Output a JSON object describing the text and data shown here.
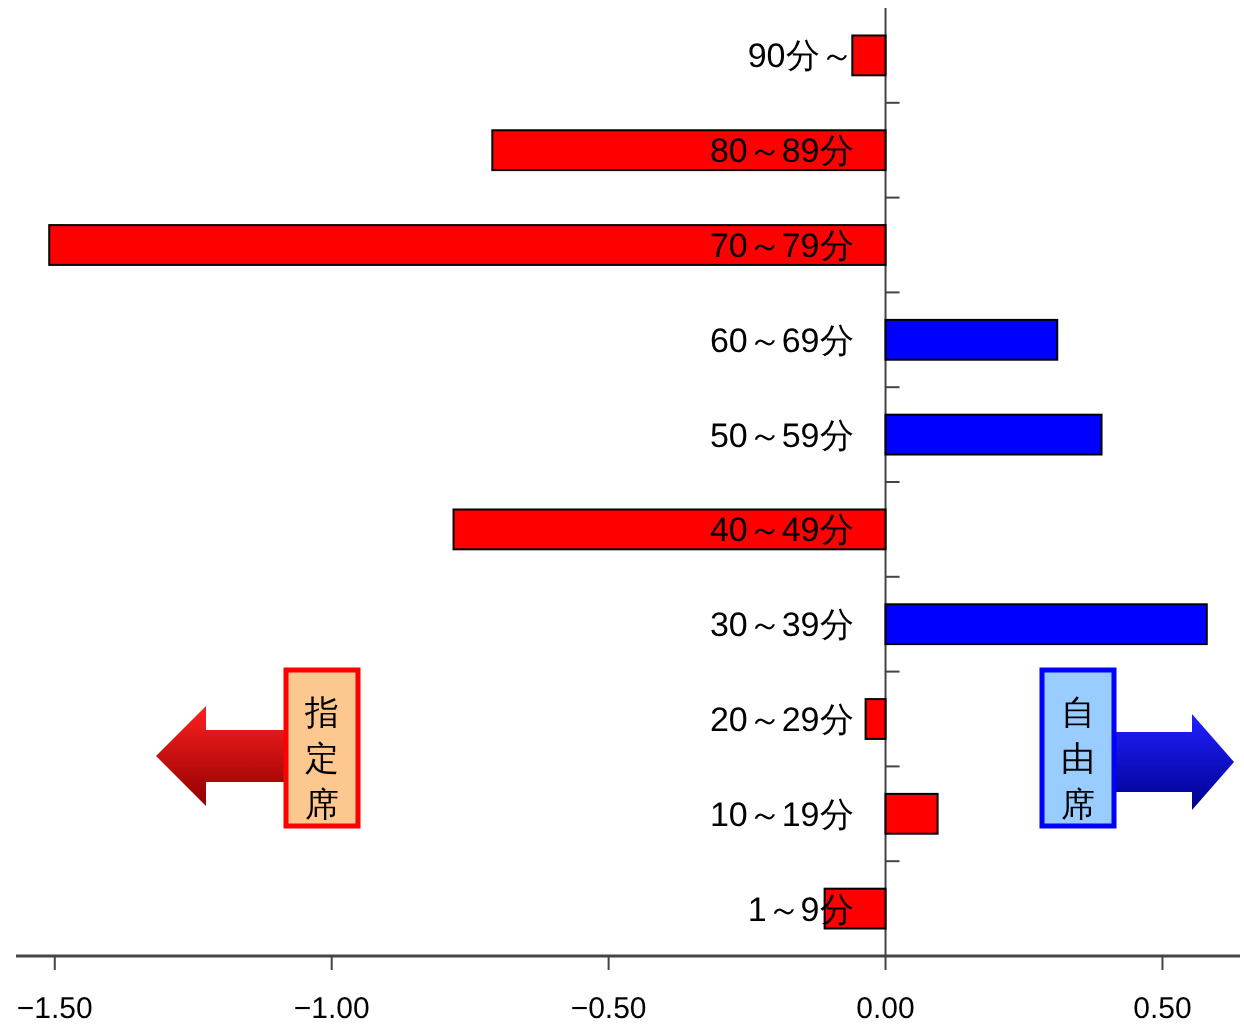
{
  "chart_data": {
    "type": "bar",
    "orientation": "horizontal",
    "categories": [
      "90分～",
      "80～89分",
      "70～79分",
      "60～69分",
      "50～59分",
      "40～49分",
      "30～39分",
      "20～29分",
      "10～19分",
      "1～9分"
    ],
    "values": [
      -0.06,
      -0.71,
      -1.51,
      0.31,
      0.39,
      -0.78,
      0.58,
      -0.036,
      0.094,
      -0.11
    ],
    "colors": [
      "#ff0000",
      "#ff0000",
      "#ff0000",
      "#0000ff",
      "#0000ff",
      "#ff0000",
      "#0000ff",
      "#ff0000",
      "#ff0000",
      "#ff0000"
    ],
    "xlim": [
      -1.57,
      0.64
    ],
    "xticks": [
      {
        "value": -1.5,
        "label": "−1.50"
      },
      {
        "value": -1.0,
        "label": "−1.00"
      },
      {
        "value": -0.5,
        "label": "−0.50"
      },
      {
        "value": 0,
        "label": "0.00"
      },
      {
        "value": 0.5,
        "label": "0.50"
      }
    ],
    "annotations": [
      "指定席",
      "自由席"
    ]
  }
}
